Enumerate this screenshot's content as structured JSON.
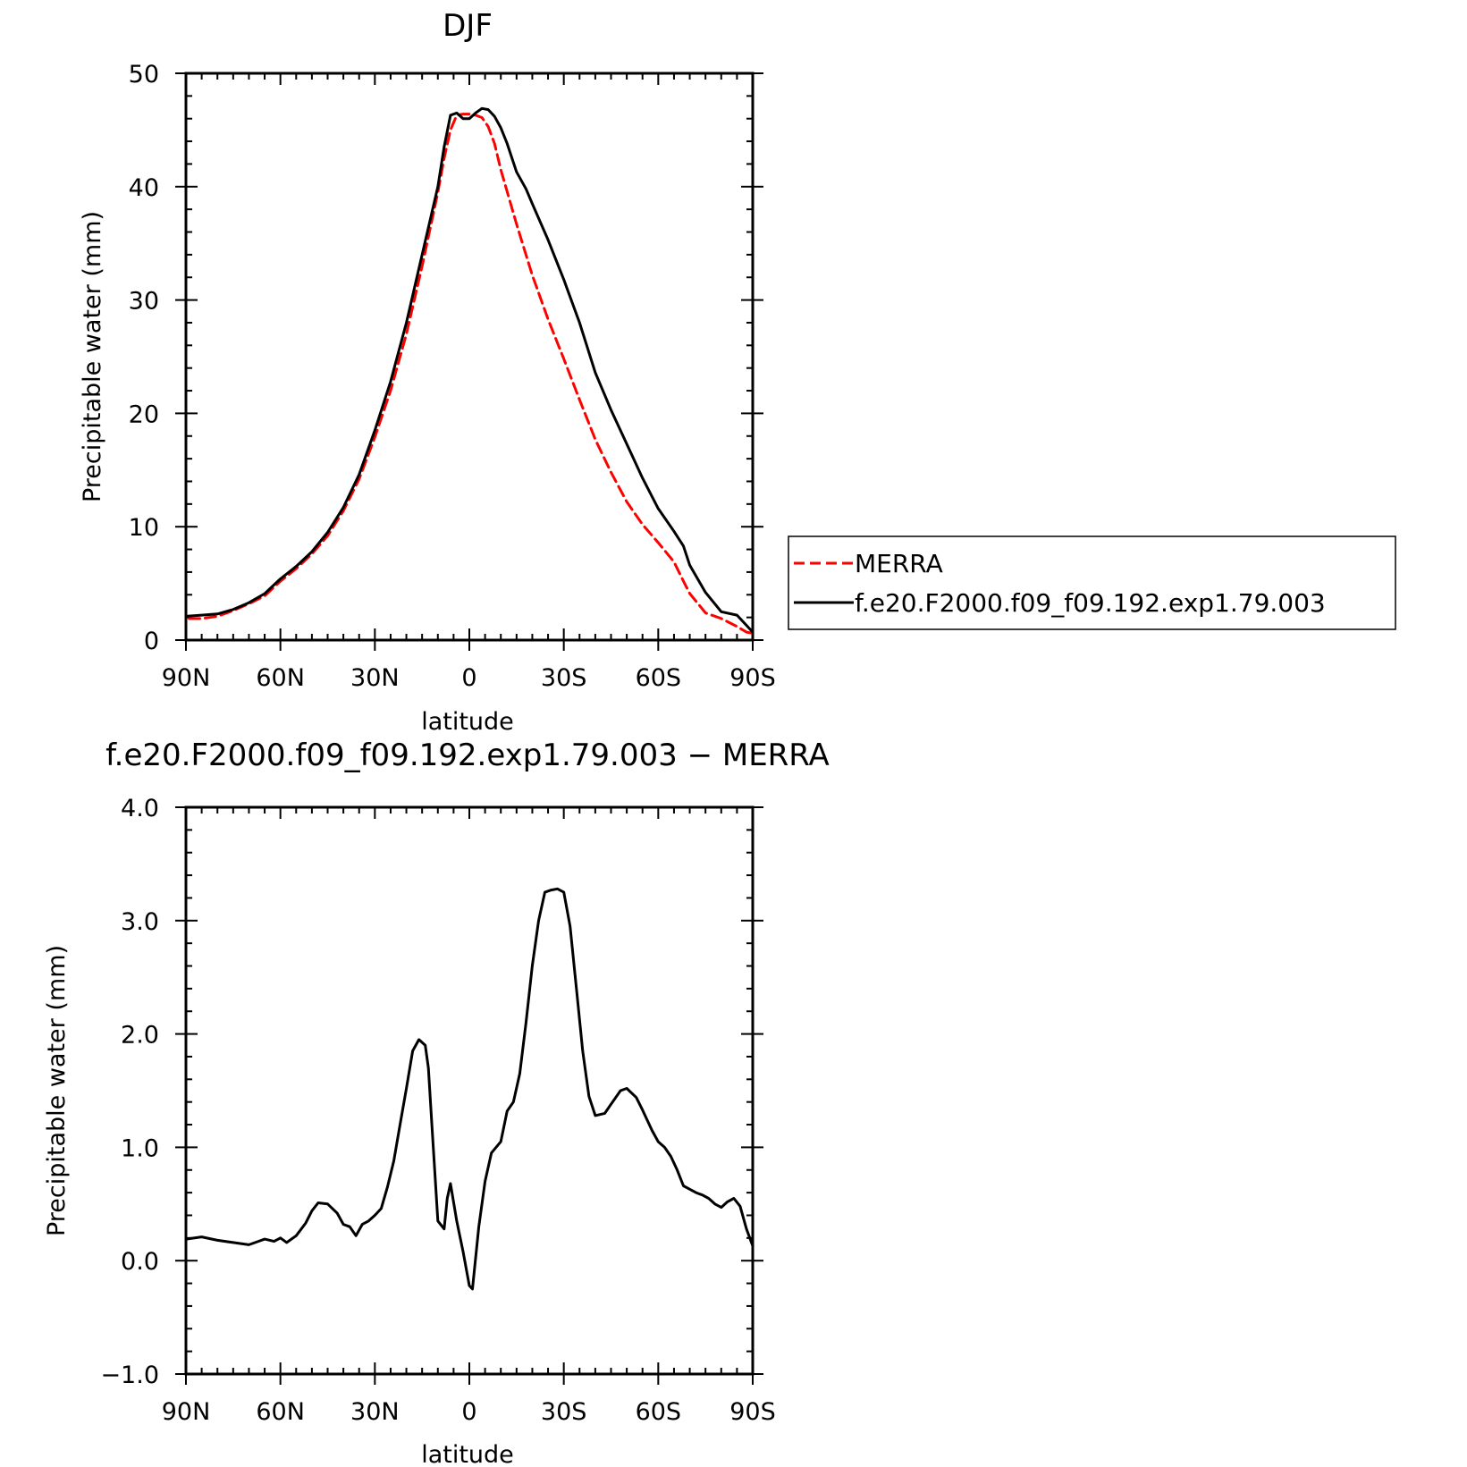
{
  "chart_data": [
    {
      "type": "line",
      "title": "DJF",
      "xlabel": "latitude",
      "ylabel": "Precipitable water (mm)",
      "xlim": [
        90,
        -90
      ],
      "ylim": [
        0,
        50
      ],
      "x_ticks": [
        90,
        60,
        30,
        0,
        -30,
        -60,
        -90
      ],
      "x_tick_labels": [
        "90N",
        "60N",
        "30N",
        "0",
        "30S",
        "60S",
        "90S"
      ],
      "y_ticks": [
        0,
        10,
        20,
        30,
        40,
        50
      ],
      "y_tick_labels": [
        "0",
        "10",
        "20",
        "30",
        "40",
        "50"
      ],
      "legend": {
        "position": "right",
        "entries": [
          "MERRA",
          "f.e20.F2000.f09_f09.192.exp1.79.003"
        ]
      },
      "series": [
        {
          "name": "MERRA",
          "color": "#ff0000",
          "style": "dashed",
          "x": [
            89,
            85,
            80,
            75,
            70,
            65,
            60,
            55,
            50,
            45,
            40,
            35,
            30,
            25,
            20,
            15,
            10,
            8,
            6,
            4,
            2,
            0,
            -2,
            -4,
            -6,
            -8,
            -10,
            -15,
            -20,
            -25,
            -30,
            -35,
            -40,
            -45,
            -50,
            -55,
            -60,
            -65,
            -68,
            -70,
            -75,
            -80,
            -85,
            -88,
            -90
          ],
          "values": [
            1.9,
            1.9,
            2.1,
            2.6,
            3.2,
            3.9,
            5.2,
            6.3,
            7.6,
            9.2,
            11.4,
            14.2,
            17.9,
            22.0,
            27.0,
            33.0,
            39.5,
            42.5,
            45.0,
            46.3,
            46.4,
            46.4,
            46.3,
            46.1,
            45.3,
            43.8,
            41.5,
            36.7,
            32.2,
            28.3,
            24.8,
            21.2,
            17.7,
            14.8,
            12.2,
            10.2,
            8.6,
            6.9,
            5.2,
            4.1,
            2.4,
            1.9,
            1.2,
            0.7,
            0.6
          ]
        },
        {
          "name": "f.e20.F2000.f09_f09.192.exp1.79.003",
          "color": "#000000",
          "style": "solid",
          "x": [
            90,
            85,
            80,
            75,
            70,
            65,
            60,
            55,
            50,
            45,
            40,
            35,
            30,
            25,
            20,
            15,
            10,
            8,
            6,
            4,
            2,
            0,
            -2,
            -4,
            -6,
            -8,
            -10,
            -12,
            -15,
            -18,
            -20,
            -25,
            -30,
            -35,
            -40,
            -45,
            -50,
            -55,
            -60,
            -65,
            -68,
            -70,
            -75,
            -80,
            -85,
            -88,
            -90
          ],
          "values": [
            2.1,
            2.2,
            2.3,
            2.7,
            3.3,
            4.1,
            5.4,
            6.5,
            7.8,
            9.5,
            11.7,
            14.6,
            18.5,
            22.8,
            28.0,
            34.0,
            40.0,
            43.5,
            46.3,
            46.5,
            46.0,
            46.0,
            46.5,
            46.9,
            46.8,
            46.2,
            45.2,
            43.8,
            41.3,
            39.8,
            38.5,
            35.3,
            31.8,
            28.0,
            23.6,
            20.3,
            17.3,
            14.3,
            11.6,
            9.6,
            8.3,
            6.6,
            4.2,
            2.5,
            2.2,
            1.3,
            0.7
          ]
        }
      ]
    },
    {
      "type": "line",
      "title": "f.e20.F2000.f09_f09.192.exp1.79.003 − MERRA",
      "xlabel": "latitude",
      "ylabel": "Precipitable water (mm)",
      "xlim": [
        90,
        -90
      ],
      "ylim": [
        -1.0,
        4.0
      ],
      "x_ticks": [
        90,
        60,
        30,
        0,
        -30,
        -60,
        -90
      ],
      "x_tick_labels": [
        "90N",
        "60N",
        "30N",
        "0",
        "30S",
        "60S",
        "90S"
      ],
      "y_ticks": [
        -1.0,
        0.0,
        1.0,
        2.0,
        3.0,
        4.0
      ],
      "y_tick_labels": [
        "−1.0",
        "0.0",
        "1.0",
        "2.0",
        "3.0",
        "4.0"
      ],
      "series": [
        {
          "color": "#000000",
          "style": "solid",
          "x": [
            90,
            85,
            80,
            75,
            70,
            67,
            65,
            62,
            60,
            58,
            55,
            52,
            50,
            48,
            45,
            42,
            40,
            38,
            36,
            34,
            32,
            30,
            28,
            26,
            24,
            22,
            20,
            18,
            16,
            14,
            13,
            12,
            10,
            8,
            7,
            6,
            4,
            2,
            0,
            -1,
            -3,
            -5,
            -7,
            -10,
            -12,
            -14,
            -16,
            -18,
            -20,
            -22,
            -24,
            -26,
            -28,
            -30,
            -32,
            -34,
            -36,
            -38,
            -40,
            -43,
            -45,
            -48,
            -50,
            -53,
            -55,
            -58,
            -60,
            -62,
            -64,
            -66,
            -68,
            -70,
            -72,
            -74,
            -76,
            -78,
            -80,
            -82,
            -84,
            -86,
            -88,
            -90
          ],
          "values": [
            0.19,
            0.21,
            0.18,
            0.16,
            0.14,
            0.17,
            0.19,
            0.17,
            0.2,
            0.16,
            0.22,
            0.33,
            0.44,
            0.51,
            0.5,
            0.42,
            0.32,
            0.3,
            0.22,
            0.32,
            0.35,
            0.4,
            0.46,
            0.65,
            0.88,
            1.2,
            1.52,
            1.85,
            1.95,
            1.9,
            1.7,
            1.25,
            0.35,
            0.28,
            0.55,
            0.68,
            0.35,
            0.08,
            -0.22,
            -0.25,
            0.3,
            0.7,
            0.95,
            1.05,
            1.32,
            1.4,
            1.65,
            2.1,
            2.6,
            3.0,
            3.25,
            3.27,
            3.28,
            3.25,
            2.95,
            2.4,
            1.85,
            1.45,
            1.28,
            1.3,
            1.38,
            1.5,
            1.52,
            1.44,
            1.33,
            1.15,
            1.05,
            1.0,
            0.92,
            0.8,
            0.66,
            0.63,
            0.6,
            0.58,
            0.55,
            0.5,
            0.47,
            0.52,
            0.55,
            0.48,
            0.28,
            0.13
          ]
        }
      ]
    }
  ]
}
